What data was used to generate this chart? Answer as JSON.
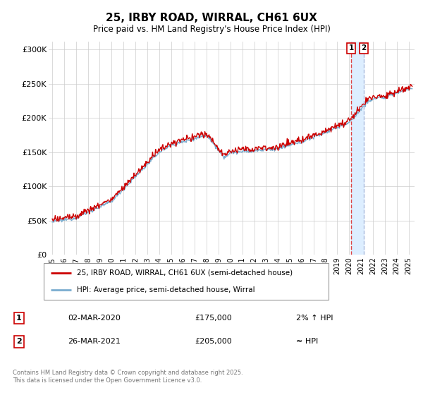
{
  "title_line1": "25, IRBY ROAD, WIRRAL, CH61 6UX",
  "title_line2": "Price paid vs. HM Land Registry's House Price Index (HPI)",
  "ylabel_ticks": [
    "£0",
    "£50K",
    "£100K",
    "£150K",
    "£200K",
    "£250K",
    "£300K"
  ],
  "ytick_vals": [
    0,
    50000,
    100000,
    150000,
    200000,
    250000,
    300000
  ],
  "ylim": [
    0,
    312000
  ],
  "xlim_start": 1994.7,
  "xlim_end": 2025.5,
  "xtick_years": [
    1995,
    1996,
    1997,
    1998,
    1999,
    2000,
    2001,
    2002,
    2003,
    2004,
    2005,
    2006,
    2007,
    2008,
    2009,
    2010,
    2011,
    2012,
    2013,
    2014,
    2015,
    2016,
    2017,
    2018,
    2019,
    2020,
    2021,
    2022,
    2023,
    2024,
    2025
  ],
  "legend_red_label": "25, IRBY ROAD, WIRRAL, CH61 6UX (semi-detached house)",
  "legend_blue_label": "HPI: Average price, semi-detached house, Wirral",
  "note1_box": "1",
  "note1_date": "02-MAR-2020",
  "note1_price": "£175,000",
  "note1_hpi": "2% ↑ HPI",
  "note2_box": "2",
  "note2_date": "26-MAR-2021",
  "note2_price": "£205,000",
  "note2_hpi": "≈ HPI",
  "copyright_text": "Contains HM Land Registry data © Crown copyright and database right 2025.\nThis data is licensed under the Open Government Licence v3.0.",
  "marker1_x": 2020.17,
  "marker2_x": 2021.23,
  "red_color": "#cc0000",
  "blue_color": "#7aadcf",
  "marker1_line_color": "#dd4444",
  "marker2_fill_color": "#ddeeff",
  "marker2_line_color": "#aabbdd",
  "background_color": "#ffffff",
  "grid_color": "#cccccc"
}
